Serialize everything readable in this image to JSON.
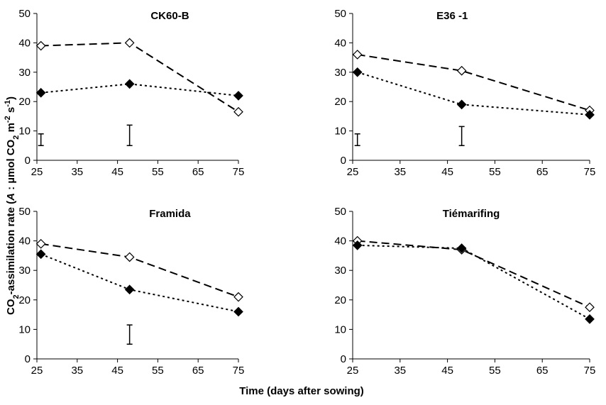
{
  "shared": {
    "xlabel": "Time (days after sowing)",
    "ylabel_parts": [
      "CO",
      "2",
      "-assimilation rate (",
      "A",
      " : µmol CO",
      "2",
      " m",
      "-2",
      " s",
      "-1",
      ")"
    ]
  },
  "chart_data": [
    {
      "type": "line",
      "title": "CK60-B",
      "x": [
        26,
        48,
        75
      ],
      "xlim": [
        25,
        75
      ],
      "xticks": [
        25,
        35,
        45,
        55,
        65,
        75
      ],
      "ylim": [
        0,
        50
      ],
      "yticks": [
        0,
        10,
        20,
        30,
        40,
        50
      ],
      "series": [
        {
          "color": "#000000",
          "marker": "open",
          "dash": "dashed",
          "values": [
            39,
            40,
            16.5
          ]
        },
        {
          "color": "#000000",
          "marker": "filled",
          "dash": "dotted",
          "values": [
            23,
            26,
            22
          ]
        }
      ],
      "error_bars": [
        {
          "x": 26,
          "low": 5,
          "high": 9
        },
        {
          "x": 48,
          "low": 5,
          "high": 12
        }
      ]
    },
    {
      "type": "line",
      "title": "E36 -1",
      "x": [
        26,
        48,
        75
      ],
      "xlim": [
        25,
        75
      ],
      "xticks": [
        25,
        35,
        45,
        55,
        65,
        75
      ],
      "ylim": [
        0,
        50
      ],
      "yticks": [
        0,
        10,
        20,
        30,
        40,
        50
      ],
      "series": [
        {
          "color": "#000000",
          "marker": "open",
          "dash": "dashed",
          "values": [
            36,
            30.5,
            17
          ]
        },
        {
          "color": "#000000",
          "marker": "filled",
          "dash": "dotted",
          "values": [
            30,
            19,
            15.5
          ]
        }
      ],
      "error_bars": [
        {
          "x": 26,
          "low": 5,
          "high": 9
        },
        {
          "x": 48,
          "low": 5,
          "high": 11.5
        }
      ]
    },
    {
      "type": "line",
      "title": "Framida",
      "x": [
        26,
        48,
        75
      ],
      "xlim": [
        25,
        75
      ],
      "xticks": [
        25,
        35,
        45,
        55,
        65,
        75
      ],
      "ylim": [
        0,
        50
      ],
      "yticks": [
        0,
        10,
        20,
        30,
        40,
        50
      ],
      "series": [
        {
          "color": "#000000",
          "marker": "open",
          "dash": "dashed",
          "values": [
            39,
            34.5,
            21
          ]
        },
        {
          "color": "#000000",
          "marker": "filled",
          "dash": "dotted",
          "values": [
            35.5,
            23.5,
            16
          ]
        }
      ],
      "error_bars": [
        {
          "x": 48,
          "low": 5,
          "high": 11.5
        }
      ]
    },
    {
      "type": "line",
      "title": "Tiémarifing",
      "x": [
        26,
        48,
        75
      ],
      "xlim": [
        25,
        75
      ],
      "xticks": [
        25,
        35,
        45,
        55,
        65,
        75
      ],
      "ylim": [
        0,
        50
      ],
      "yticks": [
        0,
        10,
        20,
        30,
        40,
        50
      ],
      "series": [
        {
          "color": "#000000",
          "marker": "open",
          "dash": "dashed",
          "values": [
            40,
            37,
            17.5
          ]
        },
        {
          "color": "#000000",
          "marker": "filled",
          "dash": "dotted",
          "values": [
            38.5,
            37.5,
            13.5
          ]
        }
      ],
      "error_bars": []
    }
  ]
}
